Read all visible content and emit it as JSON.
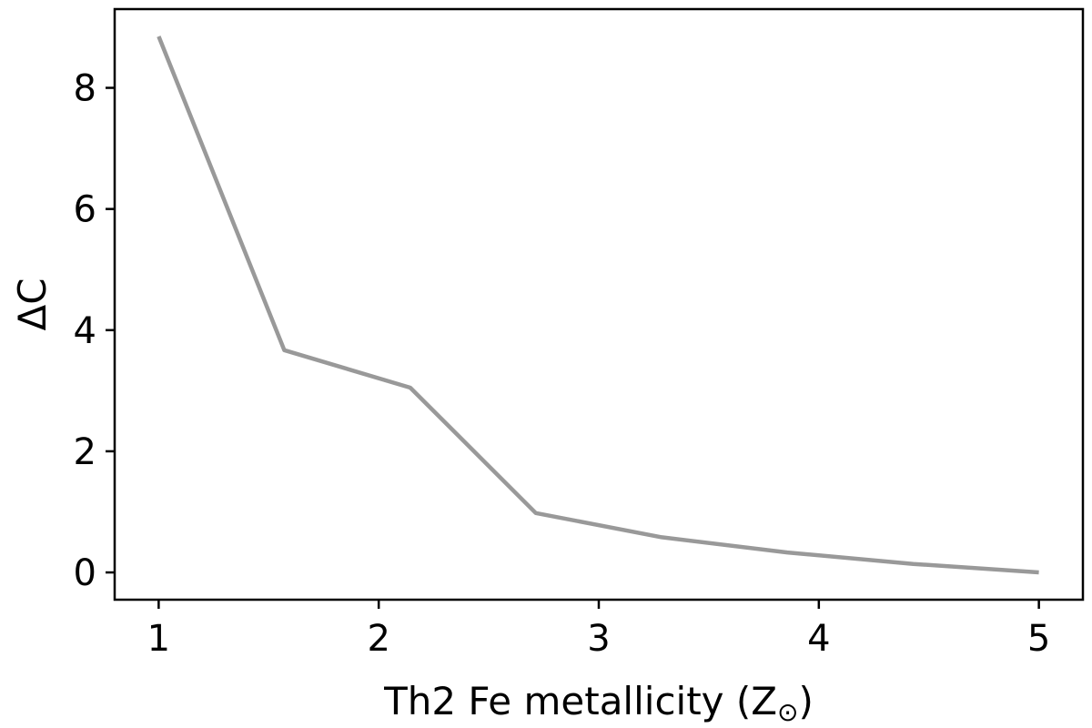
{
  "chart_data": {
    "type": "line",
    "title": "",
    "xlabel": "Th2 Fe metallicity (Z",
    "xlabel_subscript": "⊙",
    "xlabel_close": ")",
    "ylabel": "ΔC",
    "xlim": [
      0.8,
      5.2
    ],
    "ylim": [
      -0.45,
      9.3
    ],
    "xticks": [
      1,
      2,
      3,
      4,
      5
    ],
    "xtick_labels": [
      "1",
      "2",
      "3",
      "4",
      "5"
    ],
    "yticks": [
      0,
      2,
      4,
      6,
      8
    ],
    "ytick_labels": [
      "0",
      "2",
      "4",
      "6",
      "8"
    ],
    "grid": false,
    "series": [
      {
        "color": "#999999",
        "x": [
          1.0,
          1.571,
          2.143,
          2.714,
          3.286,
          3.857,
          4.429,
          5.0
        ],
        "y": [
          8.85,
          3.67,
          3.05,
          0.98,
          0.58,
          0.33,
          0.14,
          0.0
        ]
      }
    ]
  }
}
